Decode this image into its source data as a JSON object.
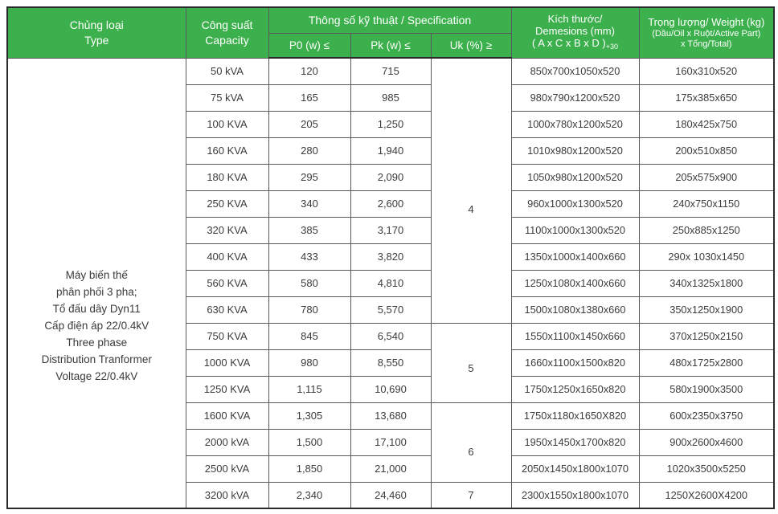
{
  "colors": {
    "header_green": "#3cb04c",
    "header_text": "#ffffff",
    "border_inner": "#59595b",
    "border_outer": "#2a2a2c",
    "body_text": "#3b3b3b"
  },
  "table": {
    "header": {
      "type_vi": "Chủng loại",
      "type_en": "Type",
      "capacity_vi": "Công suất",
      "capacity_en": "Capacity",
      "spec": "Thông số kỹ thuật  / Specification",
      "p0": "P0 (w) ≤",
      "pk": "Pk (w) ≤",
      "uk": "Uk (%) ≥",
      "dims_line1": "Kích thước/",
      "dims_line2": "Demesions (mm)",
      "dims_line3": "( A x C x B x D )",
      "dims_sub": "+30",
      "weight_line1": "Trọng lượng/ Weight (kg)",
      "weight_line2": "(Dầu/Oil x Ruột/Active Part)",
      "weight_line3": "x Tổng/Total)"
    },
    "type_description": [
      "Máy biến thế",
      "phân phối 3 pha;",
      "Tổ đấu dây Dyn11",
      "Cấp điện áp 22/0.4kV",
      "Three phase",
      "Distribution Tranformer",
      "Voltage 22/0.4kV"
    ],
    "uk_groups": [
      {
        "value": "4",
        "rowspan": 10
      },
      {
        "value": "5",
        "rowspan": 3
      },
      {
        "value": "6",
        "rowspan": 3
      },
      {
        "value": "7",
        "rowspan": 1
      }
    ],
    "rows": [
      {
        "capacity": "50 kVA",
        "p0": "120",
        "pk": "715",
        "dimensions": "850x700x1050x520",
        "weight": "160x310x520"
      },
      {
        "capacity": "75 kVA",
        "p0": "165",
        "pk": "985",
        "dimensions": "980x790x1200x520",
        "weight": "175x385x650"
      },
      {
        "capacity": "100 KVA",
        "p0": "205",
        "pk": "1,250",
        "dimensions": "1000x780x1200x520",
        "weight": "180x425x750"
      },
      {
        "capacity": "160 KVA",
        "p0": "280",
        "pk": "1,940",
        "dimensions": "1010x980x1200x520",
        "weight": "200x510x850"
      },
      {
        "capacity": "180 KVA",
        "p0": "295",
        "pk": "2,090",
        "dimensions": "1050x980x1200x520",
        "weight": "205x575x900"
      },
      {
        "capacity": "250 KVA",
        "p0": "340",
        "pk": "2,600",
        "dimensions": "960x1000x1300x520",
        "weight": "240x750x1150"
      },
      {
        "capacity": "320 KVA",
        "p0": "385",
        "pk": "3,170",
        "dimensions": "1100x1000x1300x520",
        "weight": "250x885x1250"
      },
      {
        "capacity": "400 KVA",
        "p0": "433",
        "pk": "3,820",
        "dimensions": "1350x1000x1400x660",
        "weight": "290x 1030x1450"
      },
      {
        "capacity": "560 KVA",
        "p0": "580",
        "pk": "4,810",
        "dimensions": "1250x1080x1400x660",
        "weight": "340x1325x1800"
      },
      {
        "capacity": "630 KVA",
        "p0": "780",
        "pk": "5,570",
        "dimensions": "1500x1080x1380x660",
        "weight": "350x1250x1900"
      },
      {
        "capacity": "750 KVA",
        "p0": "845",
        "pk": "6,540",
        "dimensions": "1550x1100x1450x660",
        "weight": "370x1250x2150"
      },
      {
        "capacity": "1000 KVA",
        "p0": "980",
        "pk": "8,550",
        "dimensions": "1660x1100x1500x820",
        "weight": "480x1725x2800"
      },
      {
        "capacity": "1250 KVA",
        "p0": "1,115",
        "pk": "10,690",
        "dimensions": "1750x1250x1650x820",
        "weight": "580x1900x3500"
      },
      {
        "capacity": "1600 KVA",
        "p0": "1,305",
        "pk": "13,680",
        "dimensions": "1750x1180x1650X820",
        "weight": "600x2350x3750"
      },
      {
        "capacity": "2000 kVA",
        "p0": "1,500",
        "pk": "17,100",
        "dimensions": "1950x1450x1700x820",
        "weight": "900x2600x4600"
      },
      {
        "capacity": "2500 kVA",
        "p0": "1,850",
        "pk": "21,000",
        "dimensions": "2050x1450x1800x1070",
        "weight": "1020x3500x5250"
      },
      {
        "capacity": "3200 kVA",
        "p0": "2,340",
        "pk": "24,460",
        "dimensions": "2300x1550x1800x1070",
        "weight": "1250X2600X4200"
      }
    ]
  }
}
